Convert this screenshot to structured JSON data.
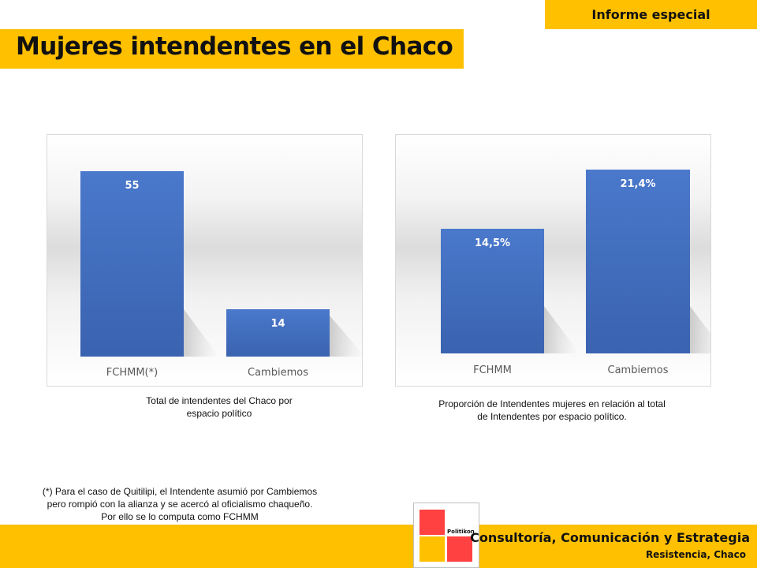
{
  "header": {
    "tag": "Informe especial",
    "title": "Mujeres intendentes en el Chaco"
  },
  "chart_data": [
    {
      "type": "bar",
      "categories": [
        "FCHMM(*)",
        "Cambiemos"
      ],
      "values": [
        55,
        14
      ],
      "data_labels": [
        "55",
        "14"
      ],
      "ylim": [
        0,
        62
      ],
      "bar_color": "#4472c4",
      "caption": "Total de intendentes del Chaco por espacio político"
    },
    {
      "type": "bar",
      "categories": [
        "FCHMM",
        "Cambiemos"
      ],
      "values": [
        14.5,
        21.4
      ],
      "data_labels": [
        "14,5%",
        "21,4%"
      ],
      "ylim": [
        0,
        24.5
      ],
      "bar_color": "#4472c4",
      "caption": "Proporción de Intendentes mujeres en relación al total de Intendentes por espacio político."
    }
  ],
  "captions": {
    "left_line1": "Total de intendentes del Chaco por",
    "left_line2": "espacio político",
    "right_line1": "Proporción de Intendentes mujeres en relación al total",
    "right_line2": "de Intendentes por espacio político."
  },
  "note": {
    "line1": "(*) Para el caso de Quitilipi, el Intendente asumió por Cambiemos",
    "line2": "pero rompió con la alianza y se acercó al oficialismo chaqueño.",
    "line3": "Por ello se lo computa como FCHMM"
  },
  "footer": {
    "logo_text": "Politikon",
    "brand": "Consultoría, Comunicación y Estrategia",
    "location": "Resistencia, Chaco"
  },
  "colors": {
    "accent_yellow": "#ffc000",
    "bar_blue": "#4472c4",
    "logo_red": "#ff4141",
    "logo_yellow": "#ffc000"
  }
}
